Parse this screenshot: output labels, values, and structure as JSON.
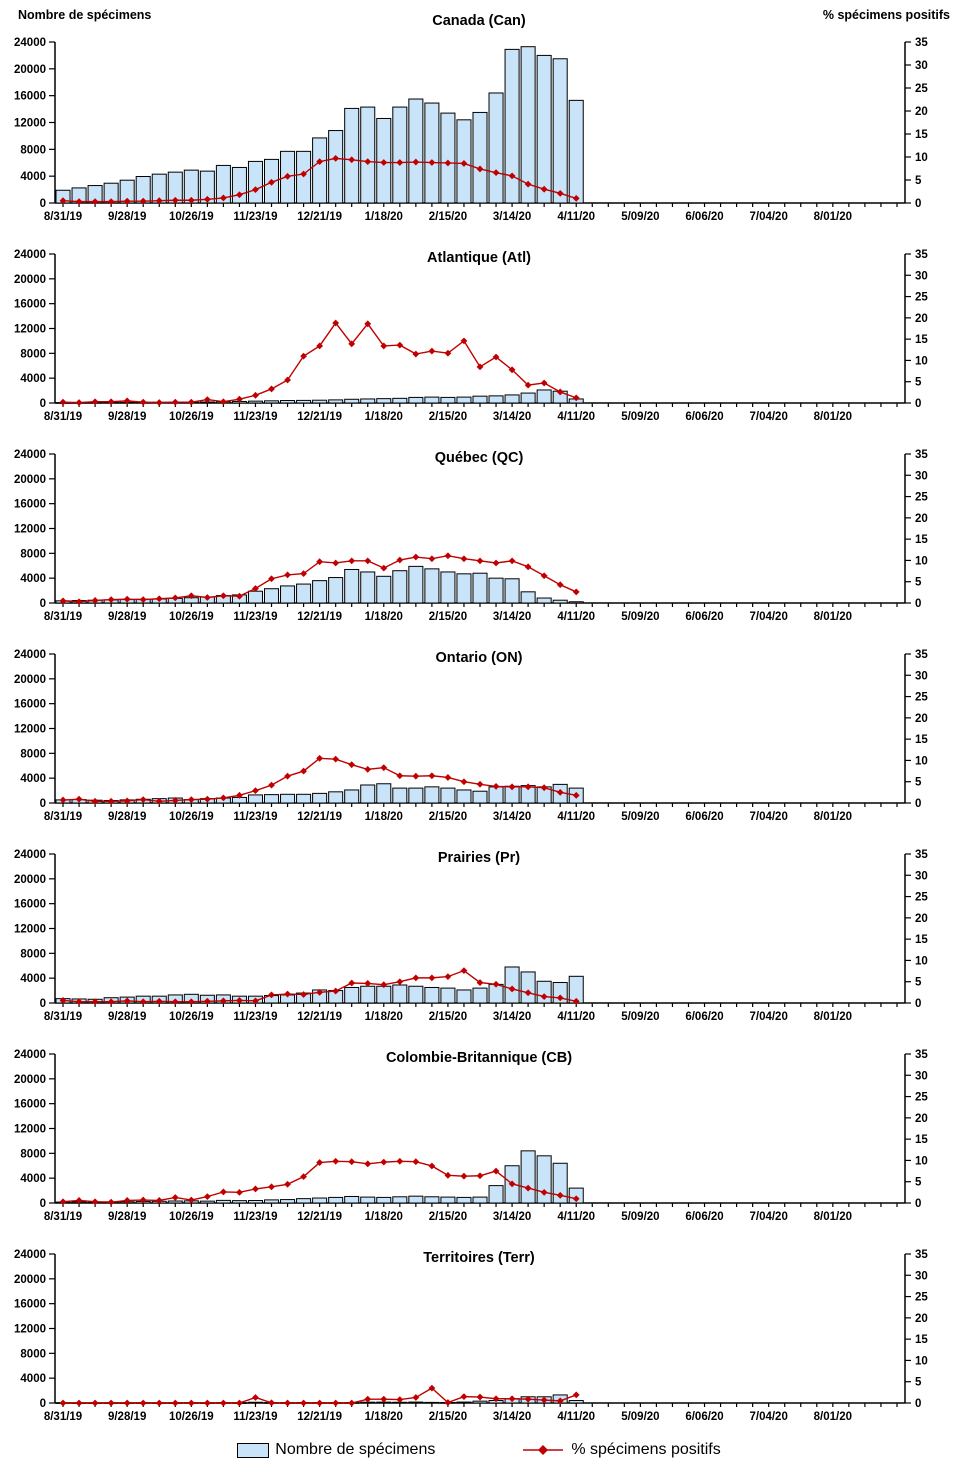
{
  "figure": {
    "left_axis_header": "Nombre de spécimens",
    "right_axis_header": "% spécimens positifs"
  },
  "legend": {
    "bar_label": "Nombre de spécimens",
    "line_label": "% spécimens positifs"
  },
  "colors": {
    "bar_fill": "#C9E3F8",
    "bar_border": "#000000",
    "line": "#C00000",
    "axis": "#000000"
  },
  "axes": {
    "left_ticks": [
      0,
      4000,
      8000,
      12000,
      16000,
      20000,
      24000
    ],
    "right_ticks": [
      0,
      5,
      10,
      15,
      20,
      25,
      30,
      35
    ],
    "left_max": 24000,
    "right_max": 35,
    "weeks_total": 53,
    "x_label_every": 4,
    "x_tick_labels": [
      "8/31/19",
      "9/28/19",
      "10/26/19",
      "11/23/19",
      "12/21/19",
      "1/18/20",
      "2/15/20",
      "3/14/20",
      "4/11/20",
      "5/09/20",
      "6/06/20",
      "7/04/20",
      "8/01/20"
    ]
  },
  "chart_data": [
    {
      "title": "Canada (Can)",
      "type": "bar",
      "ylim_left": [
        0,
        24000
      ],
      "ylim_right": [
        0,
        35
      ],
      "categories": [
        "8/31/19",
        "9/07/19",
        "9/14/19",
        "9/21/19",
        "9/28/19",
        "10/05/19",
        "10/12/19",
        "10/19/19",
        "10/26/19",
        "11/02/19",
        "11/09/19",
        "11/16/19",
        "11/23/19",
        "11/30/19",
        "12/07/19",
        "12/14/19",
        "12/21/19",
        "12/28/19",
        "1/04/20",
        "1/11/20",
        "1/18/20",
        "1/25/20",
        "2/01/20",
        "2/08/20",
        "2/15/20",
        "2/22/20",
        "2/29/20",
        "3/07/20",
        "3/14/20",
        "3/21/20",
        "3/28/20",
        "4/04/20",
        "4/11/20"
      ],
      "series": [
        {
          "name": "Nombre de spécimens",
          "type": "bar",
          "values": [
            1900,
            2250,
            2600,
            2950,
            3400,
            3950,
            4300,
            4600,
            4900,
            4750,
            5600,
            5300,
            6200,
            6500,
            7700,
            7700,
            9700,
            10800,
            14100,
            14300,
            12600,
            14300,
            15500,
            14900,
            13400,
            12400,
            13500,
            16400,
            22900,
            23300,
            22000,
            21500,
            15300
          ]
        },
        {
          "name": "% spécimens positifs",
          "type": "line",
          "values": [
            0.5,
            0.3,
            0.3,
            0.3,
            0.4,
            0.4,
            0.5,
            0.6,
            0.6,
            0.8,
            1.1,
            1.8,
            2.9,
            4.5,
            5.8,
            6.3,
            9.0,
            9.7,
            9.4,
            9.0,
            8.8,
            8.8,
            8.9,
            8.8,
            8.7,
            8.6,
            7.4,
            6.6,
            5.9,
            4.1,
            3.0,
            2.1,
            1.0
          ]
        }
      ]
    },
    {
      "title": "Atlantique (Atl)",
      "type": "bar",
      "ylim_left": [
        0,
        24000
      ],
      "ylim_right": [
        0,
        35
      ],
      "categories": [
        "8/31/19",
        "9/07/19",
        "9/14/19",
        "9/21/19",
        "9/28/19",
        "10/05/19",
        "10/12/19",
        "10/19/19",
        "10/26/19",
        "11/02/19",
        "11/09/19",
        "11/16/19",
        "11/23/19",
        "11/30/19",
        "12/07/19",
        "12/14/19",
        "12/21/19",
        "12/28/19",
        "1/04/20",
        "1/11/20",
        "1/18/20",
        "1/25/20",
        "2/01/20",
        "2/08/20",
        "2/15/20",
        "2/22/20",
        "2/29/20",
        "3/07/20",
        "3/14/20",
        "3/21/20",
        "3/28/20",
        "4/04/20",
        "4/11/20"
      ],
      "series": [
        {
          "name": "Nombre de spécimens",
          "type": "bar",
          "values": [
            60,
            70,
            80,
            90,
            100,
            110,
            120,
            130,
            150,
            160,
            200,
            250,
            300,
            350,
            400,
            420,
            450,
            500,
            600,
            650,
            700,
            750,
            900,
            950,
            900,
            950,
            1100,
            1150,
            1300,
            1600,
            2100,
            1900,
            650
          ]
        },
        {
          "name": "% spécimens positifs",
          "type": "line",
          "values": [
            0.2,
            0.1,
            0.3,
            0.3,
            0.5,
            0.2,
            0.1,
            0.2,
            0.2,
            0.8,
            0.3,
            0.9,
            1.8,
            3.3,
            5.4,
            11.0,
            13.4,
            18.8,
            13.9,
            18.6,
            13.4,
            13.6,
            11.5,
            12.2,
            11.7,
            14.6,
            8.5,
            10.8,
            7.8,
            4.2,
            4.7,
            2.6,
            1.2
          ]
        }
      ]
    },
    {
      "title": "Québec (QC)",
      "type": "bar",
      "ylim_left": [
        0,
        24000
      ],
      "ylim_right": [
        0,
        35
      ],
      "categories": [
        "8/31/19",
        "9/07/19",
        "9/14/19",
        "9/21/19",
        "9/28/19",
        "10/05/19",
        "10/12/19",
        "10/19/19",
        "10/26/19",
        "11/02/19",
        "11/09/19",
        "11/16/19",
        "11/23/19",
        "11/30/19",
        "12/07/19",
        "12/14/19",
        "12/21/19",
        "12/28/19",
        "1/04/20",
        "1/11/20",
        "1/18/20",
        "1/25/20",
        "2/01/20",
        "2/08/20",
        "2/15/20",
        "2/22/20",
        "2/29/20",
        "3/07/20",
        "3/14/20",
        "3/21/20",
        "3/28/20",
        "4/04/20",
        "4/11/20"
      ],
      "series": [
        {
          "name": "Nombre de spécimens",
          "type": "bar",
          "values": [
            350,
            400,
            450,
            500,
            550,
            600,
            650,
            750,
            850,
            950,
            1200,
            1300,
            1900,
            2300,
            2750,
            3050,
            3600,
            4100,
            5400,
            5000,
            4300,
            5200,
            5900,
            5500,
            5000,
            4700,
            4800,
            4000,
            3900,
            1800,
            800,
            450,
            200
          ]
        },
        {
          "name": "% spécimens positifs",
          "type": "line",
          "values": [
            0.5,
            0.3,
            0.6,
            0.8,
            0.9,
            0.8,
            1.0,
            1.2,
            1.7,
            1.3,
            1.7,
            1.6,
            3.4,
            5.7,
            6.6,
            6.9,
            9.7,
            9.4,
            9.9,
            9.9,
            8.2,
            10.1,
            10.8,
            10.4,
            11.1,
            10.4,
            9.9,
            9.4,
            9.9,
            8.5,
            6.4,
            4.3,
            2.6
          ]
        }
      ]
    },
    {
      "title": "Ontario (ON)",
      "type": "bar",
      "ylim_left": [
        0,
        24000
      ],
      "ylim_right": [
        0,
        35
      ],
      "categories": [
        "8/31/19",
        "9/07/19",
        "9/14/19",
        "9/21/19",
        "9/28/19",
        "10/05/19",
        "10/12/19",
        "10/19/19",
        "10/26/19",
        "11/02/19",
        "11/09/19",
        "11/16/19",
        "11/23/19",
        "11/30/19",
        "12/07/19",
        "12/14/19",
        "12/21/19",
        "12/28/19",
        "1/04/20",
        "1/11/20",
        "1/18/20",
        "1/25/20",
        "2/01/20",
        "2/08/20",
        "2/15/20",
        "2/22/20",
        "2/29/20",
        "3/07/20",
        "3/14/20",
        "3/21/20",
        "3/28/20",
        "4/04/20",
        "4/11/20"
      ],
      "series": [
        {
          "name": "Nombre de spécimens",
          "type": "bar",
          "values": [
            500,
            550,
            450,
            400,
            500,
            600,
            700,
            800,
            550,
            700,
            800,
            900,
            1300,
            1350,
            1400,
            1400,
            1550,
            1800,
            2100,
            2900,
            3100,
            2400,
            2400,
            2600,
            2400,
            2100,
            1900,
            2600,
            2700,
            2800,
            2600,
            3000,
            2400
          ]
        },
        {
          "name": "% spécimens positifs",
          "type": "line",
          "values": [
            0.7,
            0.9,
            0.4,
            0.4,
            0.5,
            0.8,
            0.4,
            0.6,
            0.8,
            0.9,
            1.2,
            1.8,
            2.9,
            4.2,
            6.3,
            7.5,
            10.5,
            10.3,
            9.0,
            7.9,
            8.3,
            6.4,
            6.3,
            6.4,
            6.0,
            5.0,
            4.4,
            3.9,
            3.8,
            3.8,
            3.6,
            2.5,
            1.8
          ]
        }
      ]
    },
    {
      "title": "Prairies (Pr)",
      "type": "bar",
      "ylim_left": [
        0,
        24000
      ],
      "ylim_right": [
        0,
        35
      ],
      "categories": [
        "8/31/19",
        "9/07/19",
        "9/14/19",
        "9/21/19",
        "9/28/19",
        "10/05/19",
        "10/12/19",
        "10/19/19",
        "10/26/19",
        "11/02/19",
        "11/09/19",
        "11/16/19",
        "11/23/19",
        "11/30/19",
        "12/07/19",
        "12/14/19",
        "12/21/19",
        "12/28/19",
        "1/04/20",
        "1/11/20",
        "1/18/20",
        "1/25/20",
        "2/01/20",
        "2/08/20",
        "2/15/20",
        "2/22/20",
        "2/29/20",
        "3/07/20",
        "3/14/20",
        "3/21/20",
        "3/28/20",
        "4/04/20",
        "4/11/20"
      ],
      "series": [
        {
          "name": "Nombre de spécimens",
          "type": "bar",
          "values": [
            700,
            650,
            600,
            850,
            950,
            1100,
            1100,
            1300,
            1400,
            1250,
            1300,
            1100,
            1100,
            1200,
            1300,
            1600,
            2100,
            2000,
            2500,
            2700,
            2700,
            2900,
            2700,
            2500,
            2400,
            2100,
            2400,
            3000,
            5800,
            5000,
            3500,
            3300,
            4300
          ]
        },
        {
          "name": "% spécimens positifs",
          "type": "line",
          "values": [
            0.6,
            0.3,
            0.3,
            0.3,
            0.5,
            0.3,
            0.4,
            0.3,
            0.3,
            0.4,
            0.5,
            0.6,
            0.5,
            1.9,
            2.1,
            2.0,
            2.5,
            2.8,
            4.7,
            4.6,
            4.3,
            5.0,
            5.9,
            5.9,
            6.2,
            7.6,
            4.8,
            4.4,
            3.3,
            2.4,
            1.5,
            1.2,
            0.4
          ]
        }
      ]
    },
    {
      "title": "Colombie-Britannique (CB)",
      "type": "bar",
      "ylim_left": [
        0,
        24000
      ],
      "ylim_right": [
        0,
        35
      ],
      "categories": [
        "8/31/19",
        "9/07/19",
        "9/14/19",
        "9/21/19",
        "9/28/19",
        "10/05/19",
        "10/12/19",
        "10/19/19",
        "10/26/19",
        "11/02/19",
        "11/09/19",
        "11/16/19",
        "11/23/19",
        "11/30/19",
        "12/07/19",
        "12/14/19",
        "12/21/19",
        "12/28/19",
        "1/04/20",
        "1/11/20",
        "1/18/20",
        "1/25/20",
        "2/01/20",
        "2/08/20",
        "2/15/20",
        "2/22/20",
        "2/29/20",
        "3/07/20",
        "3/14/20",
        "3/21/20",
        "3/28/20",
        "4/04/20",
        "4/11/20"
      ],
      "series": [
        {
          "name": "Nombre de spécimens",
          "type": "bar",
          "values": [
            150,
            180,
            150,
            180,
            200,
            250,
            280,
            320,
            350,
            300,
            420,
            380,
            400,
            500,
            550,
            700,
            800,
            900,
            1050,
            950,
            900,
            1000,
            1100,
            1000,
            950,
            900,
            950,
            2800,
            6000,
            8400,
            7600,
            6400,
            2400
          ]
        },
        {
          "name": "% spécimens positifs",
          "type": "line",
          "values": [
            0.3,
            0.6,
            0.3,
            0.2,
            0.6,
            0.7,
            0.6,
            1.3,
            0.7,
            1.5,
            2.6,
            2.5,
            3.3,
            3.8,
            4.4,
            6.2,
            9.5,
            9.8,
            9.7,
            9.2,
            9.6,
            9.8,
            9.7,
            8.7,
            6.5,
            6.3,
            6.4,
            7.5,
            4.5,
            3.5,
            2.5,
            1.8,
            1.0
          ]
        }
      ]
    },
    {
      "title": "Territoires (Terr)",
      "type": "bar",
      "ylim_left": [
        0,
        24000
      ],
      "ylim_right": [
        0,
        35
      ],
      "categories": [
        "8/31/19",
        "9/07/19",
        "9/14/19",
        "9/21/19",
        "9/28/19",
        "10/05/19",
        "10/12/19",
        "10/19/19",
        "10/26/19",
        "11/02/19",
        "11/09/19",
        "11/16/19",
        "11/23/19",
        "11/30/19",
        "12/07/19",
        "12/14/19",
        "12/21/19",
        "12/28/19",
        "1/04/20",
        "1/11/20",
        "1/18/20",
        "1/25/20",
        "2/01/20",
        "2/08/20",
        "2/15/20",
        "2/22/20",
        "2/29/20",
        "3/07/20",
        "3/14/20",
        "3/21/20",
        "3/28/20",
        "4/04/20",
        "4/11/20"
      ],
      "series": [
        {
          "name": "Nombre de spécimens",
          "type": "bar",
          "values": [
            30,
            20,
            20,
            30,
            30,
            40,
            30,
            40,
            50,
            40,
            50,
            40,
            120,
            60,
            50,
            60,
            60,
            50,
            60,
            130,
            140,
            120,
            150,
            100,
            80,
            150,
            300,
            400,
            700,
            1000,
            1000,
            1300,
            400
          ]
        },
        {
          "name": "% spécimens positifs",
          "type": "line",
          "values": [
            0,
            0,
            0,
            0,
            0,
            0,
            0,
            0,
            0,
            0,
            0,
            0,
            1.3,
            0.05,
            0,
            0,
            0,
            0,
            0,
            0.9,
            0.9,
            0.8,
            1.3,
            3.5,
            0.1,
            1.5,
            1.4,
            1.0,
            1.0,
            0.9,
            0.7,
            0.5,
            1.9
          ]
        }
      ]
    }
  ]
}
